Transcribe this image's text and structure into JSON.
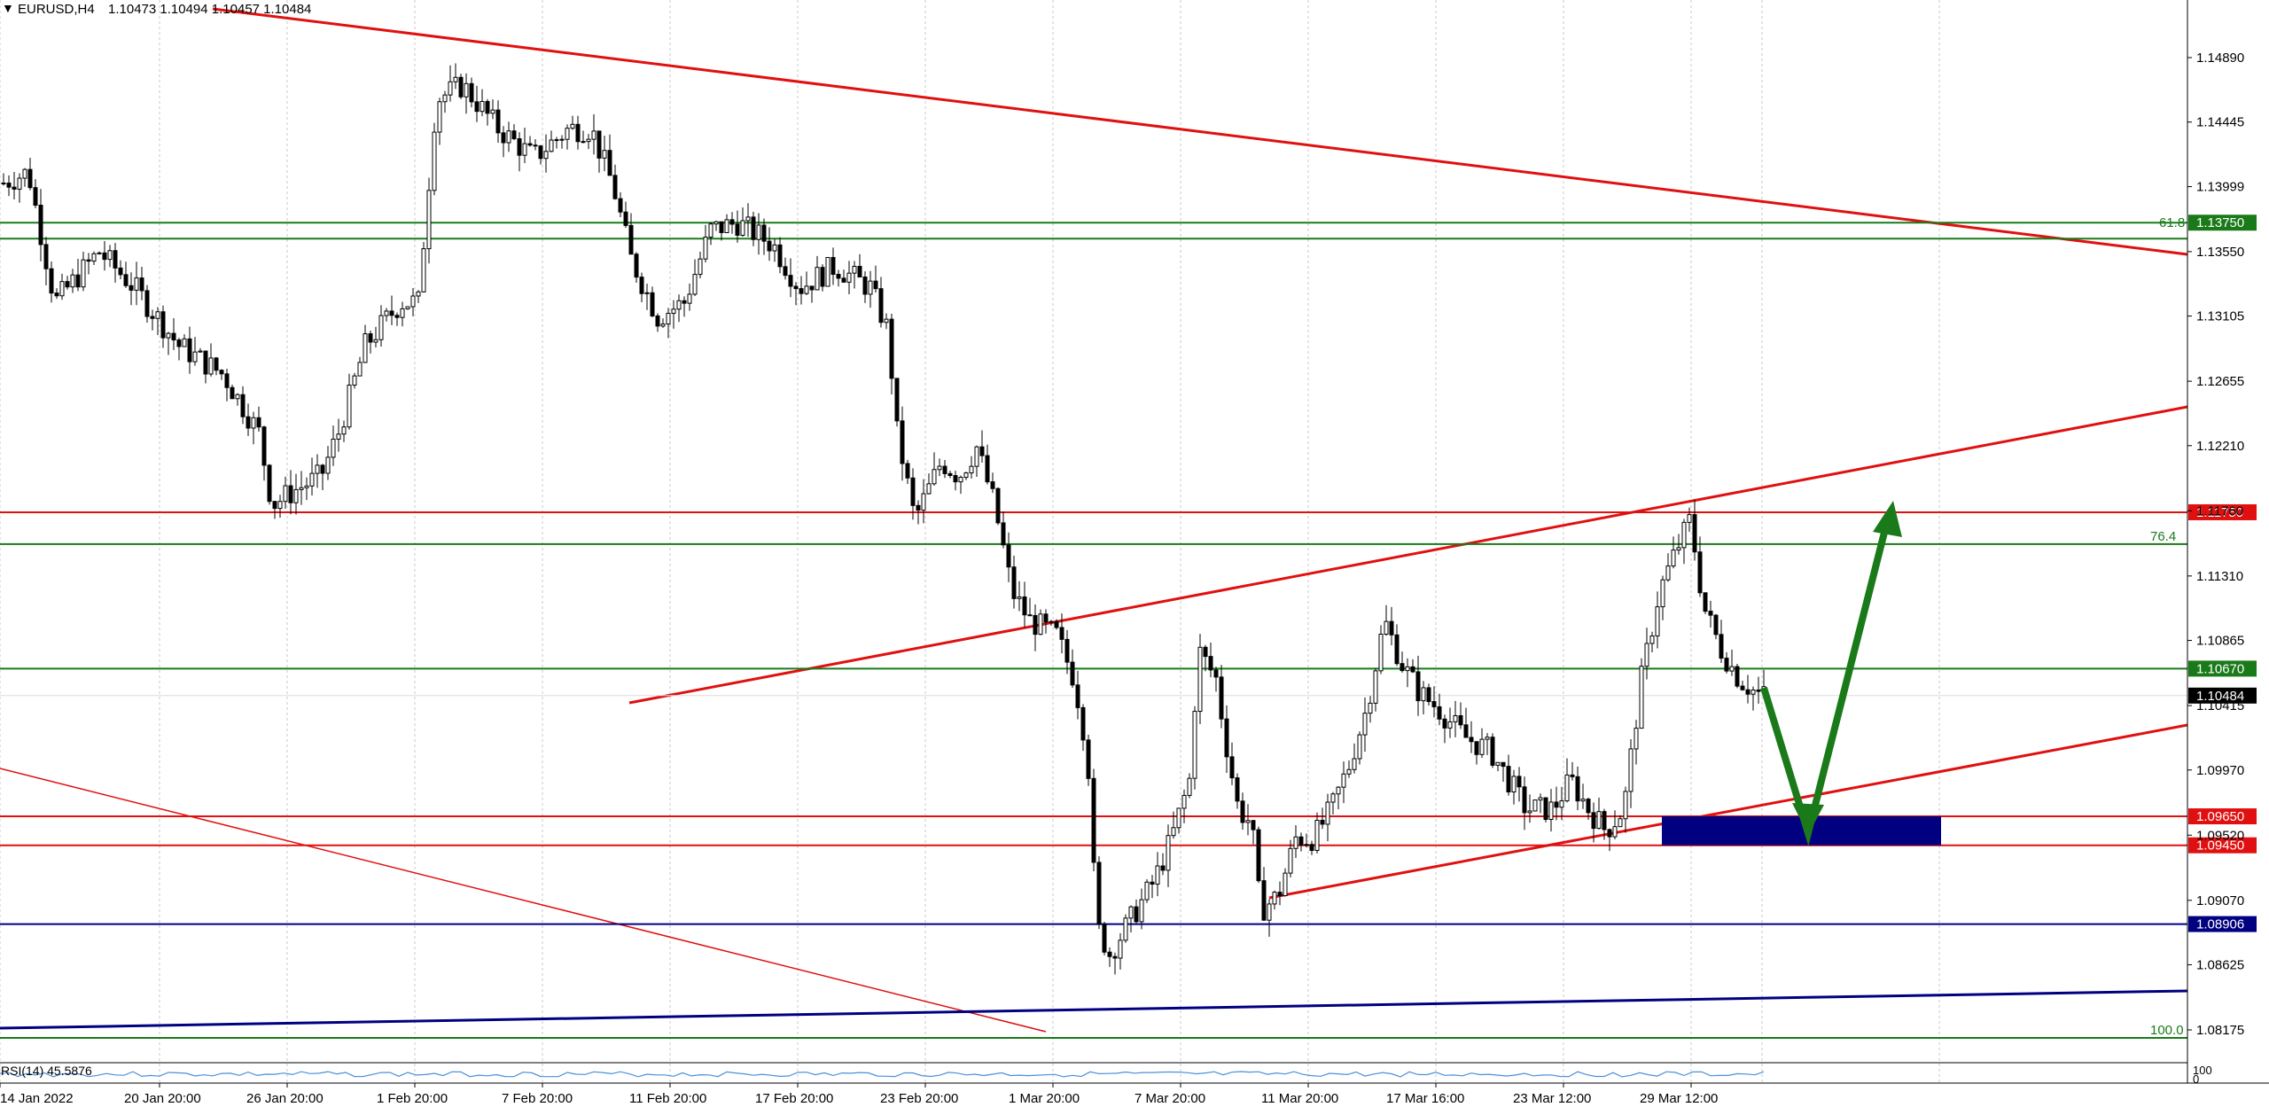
{
  "header": {
    "menu_glyph": "▼",
    "symbol": "EURUSD,H4",
    "quote": "1.10473 1.10494 1.10457 1.10484"
  },
  "price_axis": {
    "ticks": [
      "1.14890",
      "1.14445",
      "1.13999",
      "1.13550",
      "1.13105",
      "1.12655",
      "1.12210",
      "1.11760",
      "1.11310",
      "1.10865",
      "1.10415",
      "1.09970",
      "1.09520",
      "1.09070",
      "1.08625",
      "1.08175"
    ],
    "range": [
      1.0796,
      1.153
    ]
  },
  "time_axis": {
    "labels": [
      "14 Jan 2022",
      "20 Jan 20:00",
      "26 Jan 20:00",
      "1 Feb 20:00",
      "7 Feb 20:00",
      "11 Feb 20:00",
      "17 Feb 20:00",
      "23 Feb 20:00",
      "1 Mar 20:00",
      "7 Mar 20:00",
      "11 Mar 20:00",
      "17 Mar 16:00",
      "23 Mar 12:00",
      "29 Mar 12:00"
    ]
  },
  "levels": [
    {
      "price": 1.1375,
      "label": "1.13750",
      "color": "#1a7a1a",
      "fib": "61.8"
    },
    {
      "price": 1.1175,
      "label": "1.11750",
      "color": "#e01010",
      "fib": ""
    },
    {
      "price": 1.1067,
      "label": "1.10670",
      "color": "#1a7a1a",
      "fib": ""
    },
    {
      "price": 1.10484,
      "label": "1.10484",
      "color": "#000000",
      "fib": ""
    },
    {
      "price": 1.0965,
      "label": "1.09650",
      "color": "#e01010",
      "fib": ""
    },
    {
      "price": 1.0945,
      "label": "1.09450",
      "color": "#e01010",
      "fib": ""
    },
    {
      "price": 1.08906,
      "label": "1.08906",
      "color": "#000080",
      "fib": ""
    }
  ],
  "fib_labels": [
    {
      "text": "76.4",
      "price": 1.1153
    },
    {
      "text": "100.0",
      "price": 1.0812
    }
  ],
  "indicator": {
    "label": "RSI(14) 45.5876",
    "scale_top": "100",
    "scale_bottom": "0"
  },
  "colors": {
    "up_candle": "#ffffff",
    "down_candle": "#000000",
    "trendline": "#e01010",
    "fib_line": "#1a7a1a",
    "support_line": "#000080",
    "zone": "#000080",
    "arrow": "#1a7a1a",
    "rsi": "#4a90d9"
  }
}
